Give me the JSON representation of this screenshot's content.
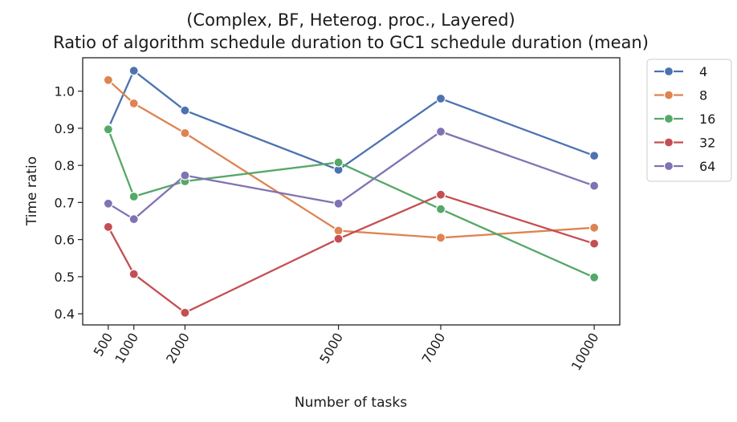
{
  "chart_data": {
    "type": "line",
    "title": "(Complex, BF, Heterog. proc., Layered)",
    "subtitle": "Ratio of algorithm schedule duration to GC1 schedule duration (mean)",
    "xlabel": "Number of tasks",
    "ylabel": "Time ratio",
    "x": [
      500,
      1000,
      2000,
      5000,
      7000,
      10000
    ],
    "x_tick_labels": [
      "500",
      "1000",
      "2000",
      "5000",
      "7000",
      "10000"
    ],
    "xlim": [
      0,
      10500
    ],
    "ylim": [
      0.37,
      1.09
    ],
    "y_ticks": [
      0.4,
      0.5,
      0.6,
      0.7,
      0.8,
      0.9,
      1.0
    ],
    "y_tick_labels": [
      "0.4",
      "0.5",
      "0.6",
      "0.7",
      "0.8",
      "0.9",
      "1.0"
    ],
    "grid": false,
    "legend_position": "outside-top-right",
    "series": [
      {
        "name": "4",
        "color": "#4c72b0",
        "values": [
          0.9,
          1.055,
          0.948,
          0.788,
          0.98,
          0.826
        ]
      },
      {
        "name": "8",
        "color": "#dd8452",
        "values": [
          1.03,
          0.967,
          0.887,
          0.624,
          0.605,
          0.632
        ]
      },
      {
        "name": "16",
        "color": "#55a868",
        "values": [
          0.897,
          0.716,
          0.757,
          0.808,
          0.682,
          0.498
        ]
      },
      {
        "name": "32",
        "color": "#c44e52",
        "values": [
          0.634,
          0.507,
          0.403,
          0.602,
          0.721,
          0.589
        ]
      },
      {
        "name": "64",
        "color": "#8172b3",
        "values": [
          0.697,
          0.655,
          0.773,
          0.697,
          0.891,
          0.745
        ]
      }
    ]
  }
}
